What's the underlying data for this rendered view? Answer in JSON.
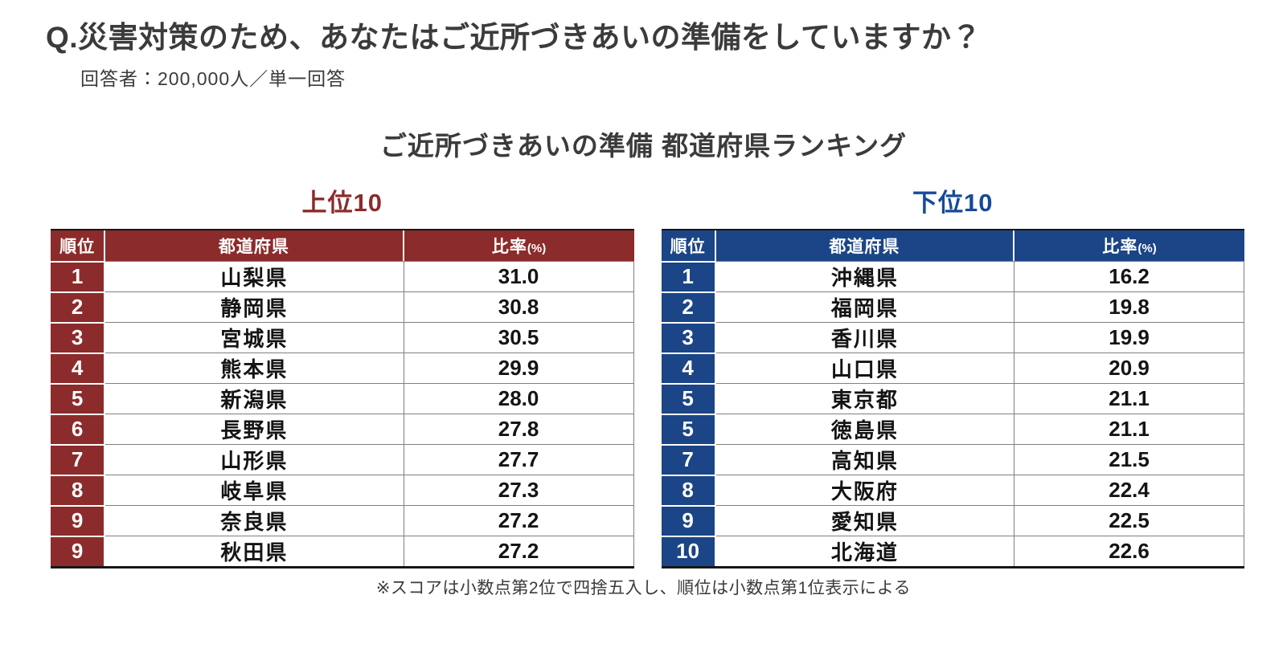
{
  "header": {
    "question": "Q.災害対策のため、あなたはご近所づきあいの準備をしていますか？",
    "respondents": "回答者：200,000人／単一回答"
  },
  "ranking": {
    "title": "ご近所づきあいの準備 都道府県ランキング",
    "footnote": "※スコアは小数点第2位で四捨五入し、順位は小数点第1位表示による",
    "columns": {
      "rank": "順位",
      "prefecture": "都道府県",
      "ratio": "比率",
      "ratio_unit": "(%)"
    },
    "tables": [
      {
        "label": "上位10",
        "label_color": "#8C2B2B",
        "accent_color": "#8C2B2B",
        "rows": [
          {
            "rank": "1",
            "prefecture": "山梨県",
            "ratio": "31.0"
          },
          {
            "rank": "2",
            "prefecture": "静岡県",
            "ratio": "30.8"
          },
          {
            "rank": "3",
            "prefecture": "宮城県",
            "ratio": "30.5"
          },
          {
            "rank": "4",
            "prefecture": "熊本県",
            "ratio": "29.9"
          },
          {
            "rank": "5",
            "prefecture": "新潟県",
            "ratio": "28.0"
          },
          {
            "rank": "6",
            "prefecture": "長野県",
            "ratio": "27.8"
          },
          {
            "rank": "7",
            "prefecture": "山形県",
            "ratio": "27.7"
          },
          {
            "rank": "8",
            "prefecture": "岐阜県",
            "ratio": "27.3"
          },
          {
            "rank": "9",
            "prefecture": "奈良県",
            "ratio": "27.2"
          },
          {
            "rank": "9",
            "prefecture": "秋田県",
            "ratio": "27.2"
          }
        ]
      },
      {
        "label": "下位10",
        "label_color": "#17499A",
        "accent_color": "#1B4586",
        "rows": [
          {
            "rank": "1",
            "prefecture": "沖縄県",
            "ratio": "16.2"
          },
          {
            "rank": "2",
            "prefecture": "福岡県",
            "ratio": "19.8"
          },
          {
            "rank": "3",
            "prefecture": "香川県",
            "ratio": "19.9"
          },
          {
            "rank": "4",
            "prefecture": "山口県",
            "ratio": "20.9"
          },
          {
            "rank": "5",
            "prefecture": "東京都",
            "ratio": "21.1"
          },
          {
            "rank": "5",
            "prefecture": "徳島県",
            "ratio": "21.1"
          },
          {
            "rank": "7",
            "prefecture": "高知県",
            "ratio": "21.5"
          },
          {
            "rank": "8",
            "prefecture": "大阪府",
            "ratio": "22.4"
          },
          {
            "rank": "9",
            "prefecture": "愛知県",
            "ratio": "22.5"
          },
          {
            "rank": "10",
            "prefecture": "北海道",
            "ratio": "22.6"
          }
        ]
      }
    ]
  },
  "chart_data": [
    {
      "type": "table",
      "title": "ご近所づきあいの準備 都道府県ランキング 上位10",
      "columns": [
        "順位",
        "都道府県",
        "比率(%)"
      ],
      "rows": [
        [
          1,
          "山梨県",
          31.0
        ],
        [
          2,
          "静岡県",
          30.8
        ],
        [
          3,
          "宮城県",
          30.5
        ],
        [
          4,
          "熊本県",
          29.9
        ],
        [
          5,
          "新潟県",
          28.0
        ],
        [
          6,
          "長野県",
          27.8
        ],
        [
          7,
          "山形県",
          27.7
        ],
        [
          8,
          "岐阜県",
          27.3
        ],
        [
          9,
          "奈良県",
          27.2
        ],
        [
          9,
          "秋田県",
          27.2
        ]
      ]
    },
    {
      "type": "table",
      "title": "ご近所づきあいの準備 都道府県ランキング 下位10",
      "columns": [
        "順位",
        "都道府県",
        "比率(%)"
      ],
      "rows": [
        [
          1,
          "沖縄県",
          16.2
        ],
        [
          2,
          "福岡県",
          19.8
        ],
        [
          3,
          "香川県",
          19.9
        ],
        [
          4,
          "山口県",
          20.9
        ],
        [
          5,
          "東京都",
          21.1
        ],
        [
          5,
          "徳島県",
          21.1
        ],
        [
          7,
          "高知県",
          21.5
        ],
        [
          8,
          "大阪府",
          22.4
        ],
        [
          9,
          "愛知県",
          22.5
        ],
        [
          10,
          "北海道",
          22.6
        ]
      ]
    }
  ]
}
